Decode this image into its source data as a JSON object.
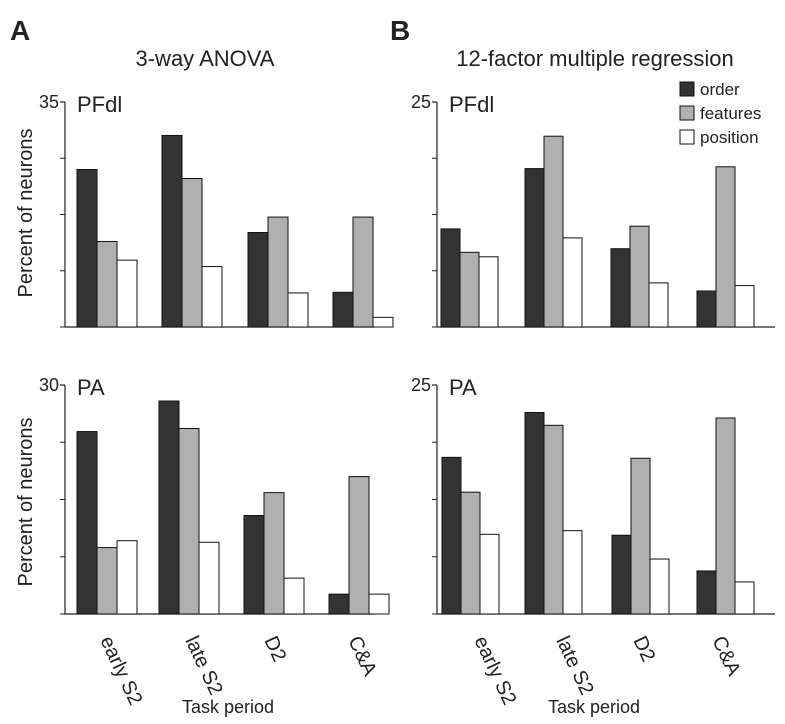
{
  "panel_letters": [
    "A",
    "B"
  ],
  "column_titles": [
    "3-way ANOVA",
    "12-factor multiple regression"
  ],
  "x_axis_label": "Task period",
  "y_axis_label": "Percent of neurons",
  "legend": [
    {
      "label": "order",
      "color": "#333333"
    },
    {
      "label": "features",
      "color": "#b0b0b0"
    },
    {
      "label": "position",
      "color": "#ffffff"
    }
  ],
  "chart_data": [
    {
      "type": "bar",
      "panel": "A",
      "title": "PFdl",
      "categories": [
        "early S2",
        "late S2",
        "D2",
        "C&A"
      ],
      "series": [
        {
          "name": "order",
          "values": [
            24.5,
            29.8,
            14.7,
            5.4
          ]
        },
        {
          "name": "features",
          "values": [
            13.3,
            23.1,
            17.1,
            17.1
          ]
        },
        {
          "name": "position",
          "values": [
            10.4,
            9.4,
            5.3,
            1.5
          ]
        }
      ],
      "ylim": [
        0,
        35
      ],
      "ytick_label": "35",
      "ylabel": "Percent of neurons"
    },
    {
      "type": "bar",
      "panel": "B",
      "title": "PFdl",
      "categories": [
        "early S2",
        "late S2",
        "D2",
        "C&A"
      ],
      "series": [
        {
          "name": "order",
          "values": [
            10.9,
            17.6,
            8.7,
            4.0
          ]
        },
        {
          "name": "features",
          "values": [
            8.3,
            21.2,
            11.2,
            17.8
          ]
        },
        {
          "name": "position",
          "values": [
            7.8,
            9.9,
            4.9,
            4.6
          ]
        }
      ],
      "ylim": [
        0,
        25
      ],
      "ytick_label": "25"
    },
    {
      "type": "bar",
      "panel": "A",
      "title": "PA",
      "categories": [
        "early S2",
        "late S2",
        "D2",
        "C&A"
      ],
      "series": [
        {
          "name": "order",
          "values": [
            23.9,
            27.9,
            12.9,
            2.6
          ]
        },
        {
          "name": "features",
          "values": [
            8.7,
            24.3,
            15.9,
            18.0
          ]
        },
        {
          "name": "position",
          "values": [
            9.6,
            9.4,
            4.7,
            2.6
          ]
        }
      ],
      "ylim": [
        0,
        30
      ],
      "ytick_label": "30",
      "ylabel": "Percent of neurons"
    },
    {
      "type": "bar",
      "panel": "B",
      "title": "PA",
      "categories": [
        "early S2",
        "late S2",
        "D2",
        "C&A"
      ],
      "series": [
        {
          "name": "order",
          "values": [
            17.1,
            22.0,
            8.6,
            4.7
          ]
        },
        {
          "name": "features",
          "values": [
            13.3,
            20.6,
            17.0,
            21.4
          ]
        },
        {
          "name": "position",
          "values": [
            8.7,
            9.1,
            6.0,
            3.5
          ]
        }
      ],
      "ylim": [
        0,
        25
      ],
      "ytick_label": "25"
    }
  ]
}
